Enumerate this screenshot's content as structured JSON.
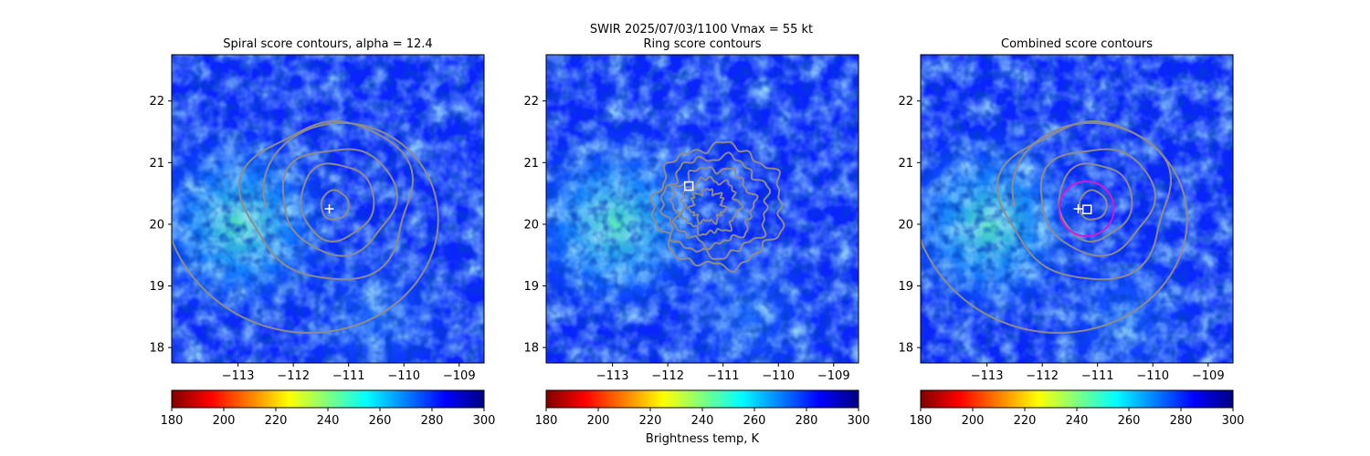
{
  "figure": {
    "suptitle": "SWIR  2025/07/03/1100    Vmax = 55 kt",
    "colorbar_label": "Brightness temp, K"
  },
  "colors": {
    "contour": "#8c8c8c",
    "marker": "#ffffff",
    "ring": "#d01cd0"
  },
  "chart_data": [
    {
      "type": "heatmap",
      "title": "Spiral score contours, alpha = 12.4",
      "xlabel": "",
      "ylabel": "",
      "xlim": [
        -114.2,
        -108.55
      ],
      "ylim": [
        17.75,
        22.75
      ],
      "xticks": [
        -113,
        -112,
        -111,
        -110,
        -109
      ],
      "xtick_labels": [
        "−113",
        "−112",
        "−111",
        "−110",
        "−109"
      ],
      "yticks": [
        18,
        19,
        20,
        21,
        22
      ],
      "ytick_labels": [
        "18",
        "19",
        "20",
        "21",
        "22"
      ],
      "colormap": "jet",
      "colorbar": {
        "range": [
          180,
          300
        ],
        "ticks": [
          180,
          200,
          220,
          240,
          260,
          280,
          300
        ],
        "tick_labels": [
          "180",
          "200",
          "220",
          "240",
          "260",
          "280",
          "300"
        ]
      },
      "markers": [
        {
          "symbol": "plus",
          "lon": -111.35,
          "lat": 20.25
        }
      ]
    },
    {
      "type": "heatmap",
      "title": "Ring score contours",
      "xlabel": "",
      "ylabel": "",
      "xlim": [
        -114.2,
        -108.55
      ],
      "ylim": [
        17.75,
        22.75
      ],
      "xticks": [
        -113,
        -112,
        -111,
        -110,
        -109
      ],
      "xtick_labels": [
        "−113",
        "−112",
        "−111",
        "−110",
        "−109"
      ],
      "yticks": [
        18,
        19,
        20,
        21,
        22
      ],
      "ytick_labels": [
        "18",
        "19",
        "20",
        "21",
        "22"
      ],
      "colormap": "jet",
      "colorbar": {
        "range": [
          180,
          300
        ],
        "ticks": [
          180,
          200,
          220,
          240,
          260,
          280,
          300
        ],
        "tick_labels": [
          "180",
          "200",
          "220",
          "240",
          "260",
          "280",
          "300"
        ]
      },
      "markers": [
        {
          "symbol": "square",
          "lon": -111.62,
          "lat": 20.62
        }
      ]
    },
    {
      "type": "heatmap",
      "title": "Combined score contours",
      "xlabel": "",
      "ylabel": "",
      "xlim": [
        -114.2,
        -108.55
      ],
      "ylim": [
        17.75,
        22.75
      ],
      "xticks": [
        -113,
        -112,
        -111,
        -110,
        -109
      ],
      "xtick_labels": [
        "−113",
        "−112",
        "−111",
        "−110",
        "−109"
      ],
      "yticks": [
        18,
        19,
        20,
        21,
        22
      ],
      "ytick_labels": [
        "18",
        "19",
        "20",
        "21",
        "22"
      ],
      "colormap": "jet",
      "colorbar": {
        "range": [
          180,
          300
        ],
        "ticks": [
          180,
          200,
          220,
          240,
          260,
          280,
          300
        ],
        "tick_labels": [
          "180",
          "200",
          "220",
          "240",
          "260",
          "280",
          "300"
        ]
      },
      "markers": [
        {
          "symbol": "plus",
          "lon": -111.35,
          "lat": 20.25
        },
        {
          "symbol": "square",
          "lon": -111.19,
          "lat": 20.24
        }
      ]
    }
  ]
}
